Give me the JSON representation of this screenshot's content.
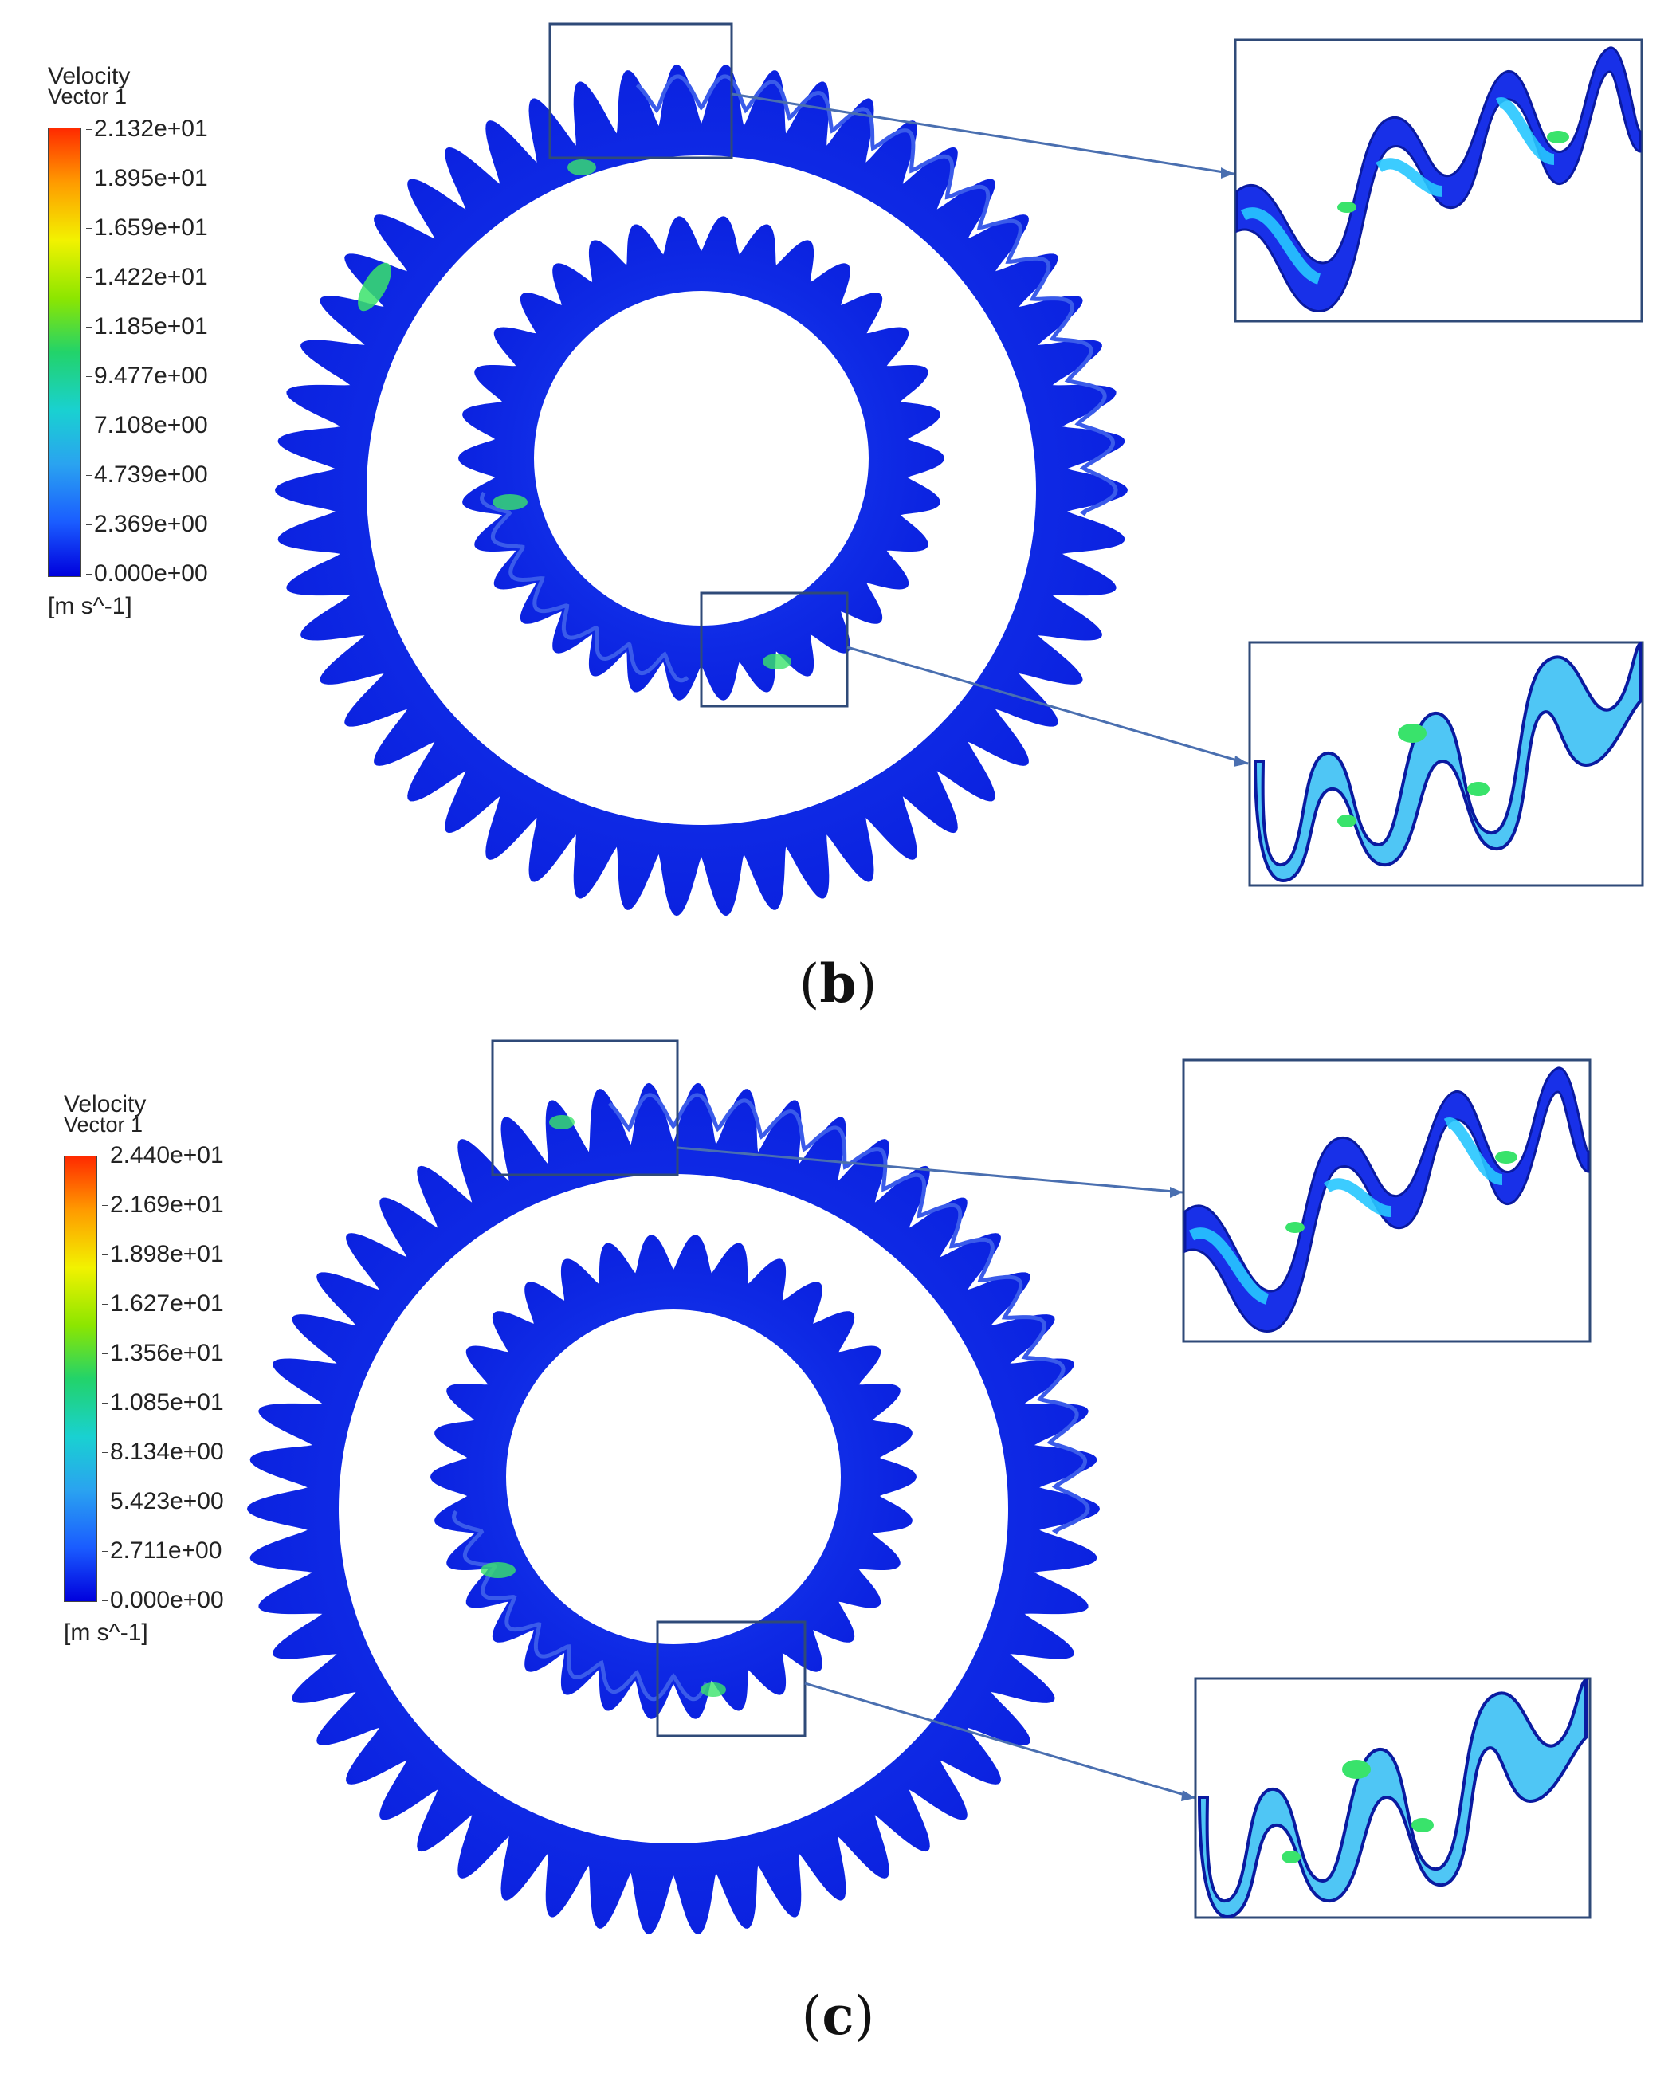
{
  "panels": [
    {
      "caption_open": "(",
      "caption_letter": "b",
      "caption_close": ")",
      "legend": {
        "title": "Velocity",
        "subtitle": "Vector 1",
        "ticks": [
          "2.132e+01",
          "1.895e+01",
          "1.659e+01",
          "1.422e+01",
          "1.185e+01",
          "9.477e+00",
          "7.108e+00",
          "4.739e+00",
          "2.369e+00",
          "0.000e+00"
        ],
        "units": "[m s^-1]"
      }
    },
    {
      "caption_open": "(",
      "caption_letter": "c",
      "caption_close": ")",
      "legend": {
        "title": "Velocity",
        "subtitle": "Vector 1",
        "ticks": [
          "2.440e+01",
          "2.169e+01",
          "1.898e+01",
          "1.627e+01",
          "1.356e+01",
          "1.085e+01",
          "8.134e+00",
          "5.423e+00",
          "2.711e+00",
          "0.000e+00"
        ],
        "units": "[m s^-1]"
      }
    }
  ],
  "colors": {
    "gear_fill": "#1f3ff0",
    "gear_highlight": "#2fb7ff",
    "hot_spot": "#39e36b",
    "frame": "#2f4a78",
    "leader": "#4a6fb0"
  }
}
